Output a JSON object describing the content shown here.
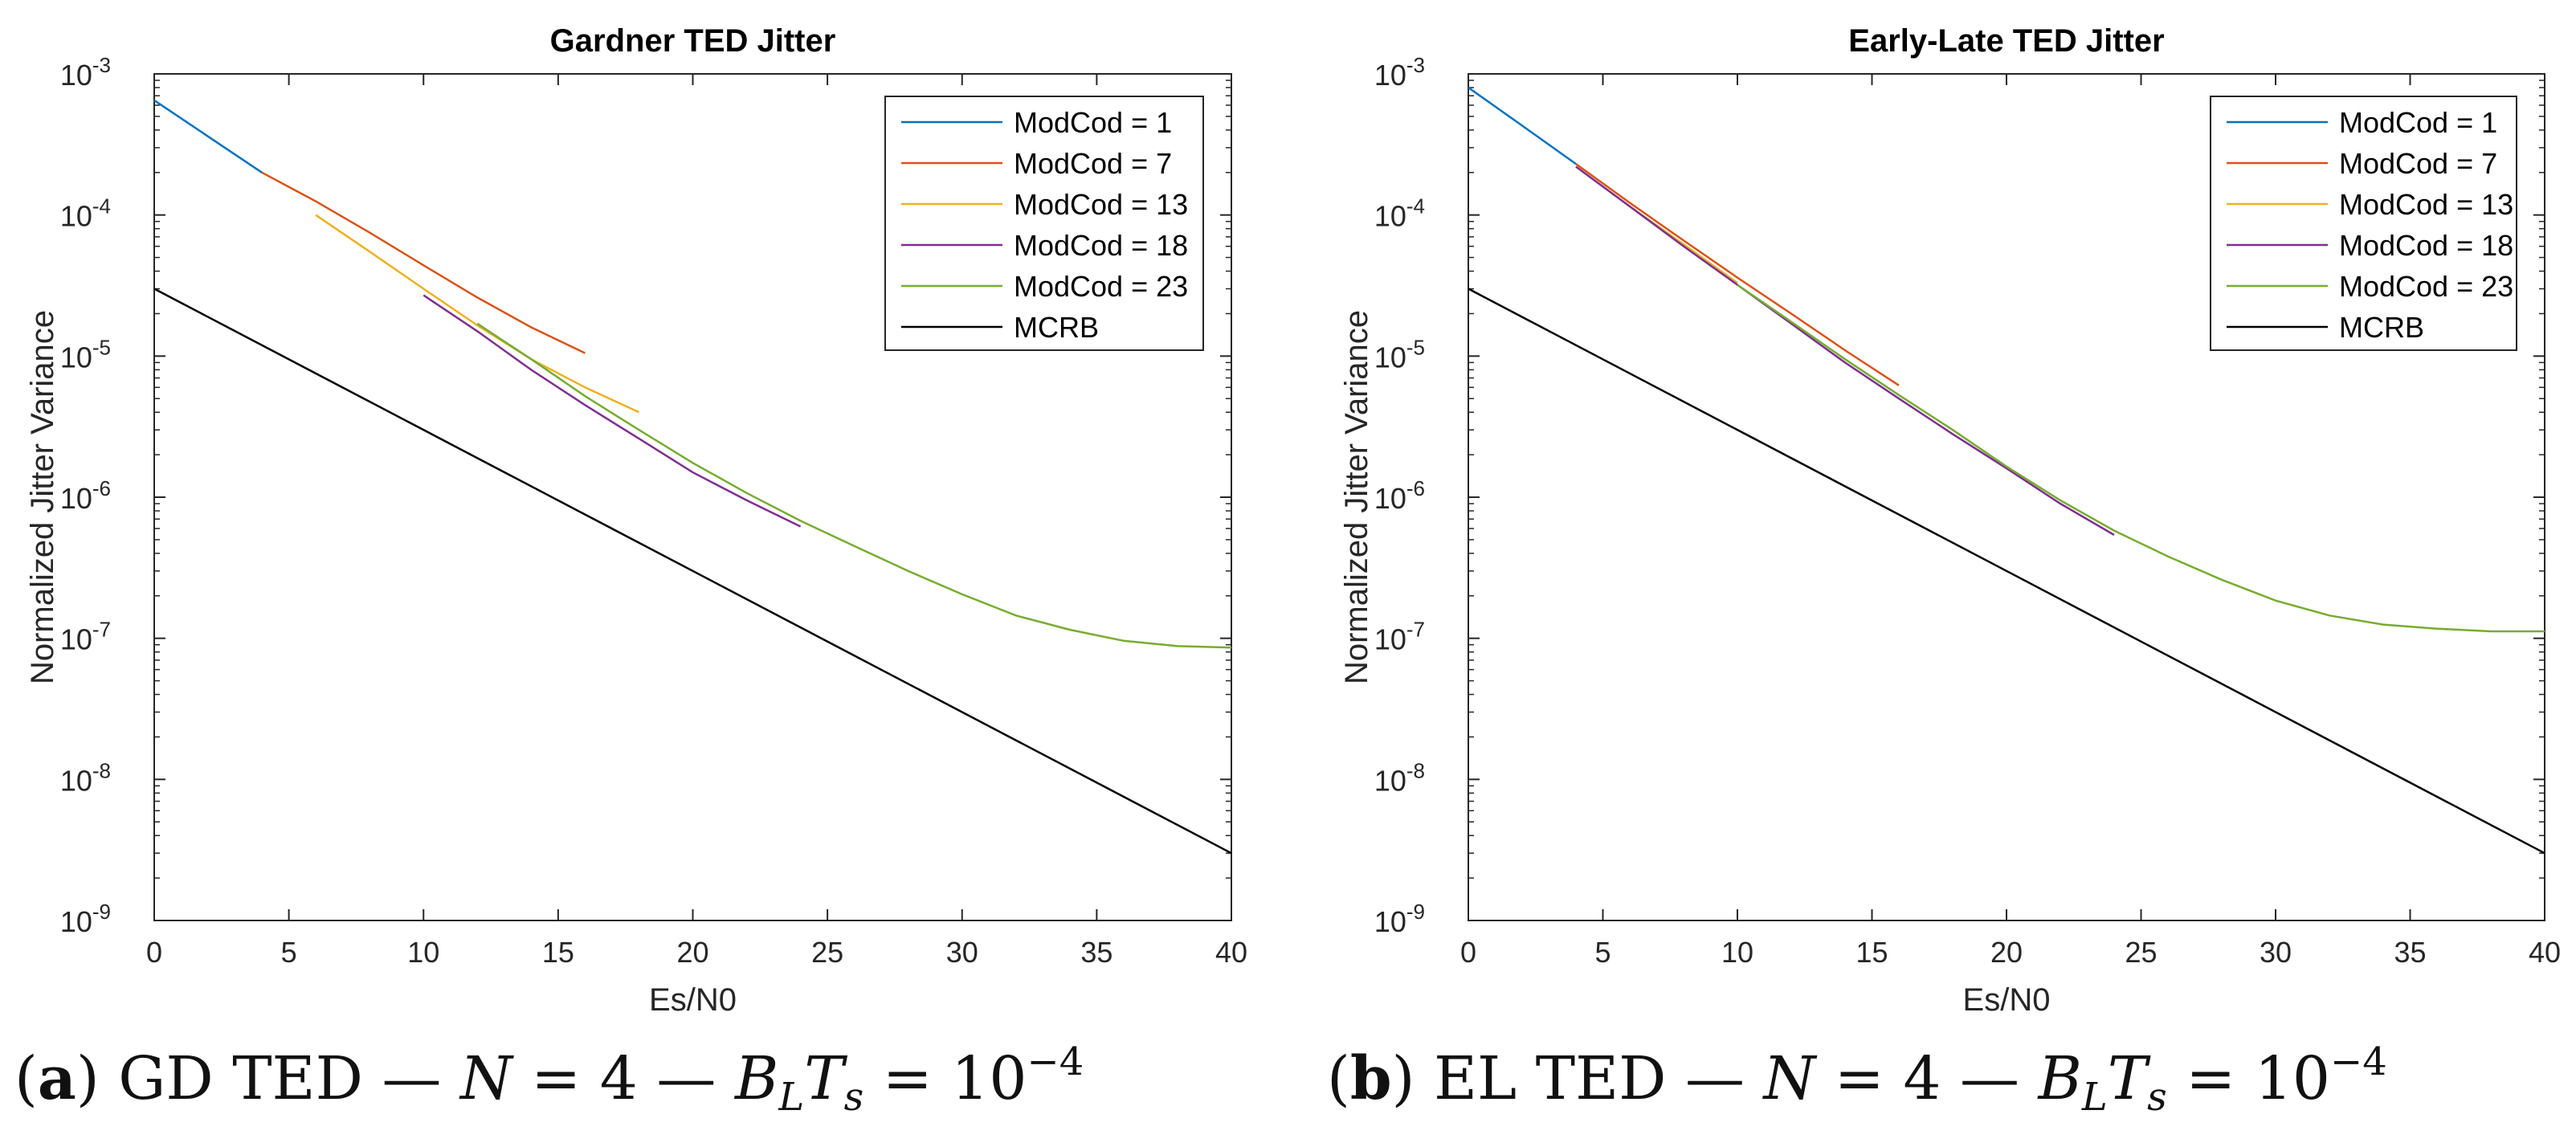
{
  "chart_data": [
    {
      "type": "line",
      "title": "Gardner TED Jitter",
      "xlabel": "Es/N0",
      "ylabel": "Normalized Jitter Variance",
      "xlim": [
        0,
        40
      ],
      "ylim": [
        1e-09,
        0.001
      ],
      "yscale": "log",
      "xticks": [
        0,
        5,
        10,
        15,
        20,
        25,
        30,
        35,
        40
      ],
      "yticks": [
        {
          "base": "10",
          "exp": "-9"
        },
        {
          "base": "10",
          "exp": "-8"
        },
        {
          "base": "10",
          "exp": "-7"
        },
        {
          "base": "10",
          "exp": "-6"
        },
        {
          "base": "10",
          "exp": "-5"
        },
        {
          "base": "10",
          "exp": "-4"
        },
        {
          "base": "10",
          "exp": "-3"
        }
      ],
      "legend_position": "top-right",
      "series": [
        {
          "name": "ModCod = 1",
          "color": "#0072BD",
          "x": [
            0,
            2,
            4
          ],
          "y": [
            0.00065,
            0.00036,
            0.0002
          ]
        },
        {
          "name": "ModCod = 7",
          "color": "#D95319",
          "x": [
            4,
            6,
            8,
            10,
            12,
            14,
            16
          ],
          "y": [
            0.0002,
            0.000125,
            7.5e-05,
            4.4e-05,
            2.6e-05,
            1.6e-05,
            1.05e-05
          ]
        },
        {
          "name": "ModCod = 13",
          "color": "#EDB120",
          "x": [
            6,
            8,
            10,
            12,
            14,
            16,
            18
          ],
          "y": [
            0.0001,
            5.5e-05,
            3e-05,
            1.65e-05,
            9.5e-06,
            6e-06,
            4e-06
          ]
        },
        {
          "name": "ModCod = 18",
          "color": "#7E2F8E",
          "x": [
            10,
            12,
            14,
            16,
            18,
            20,
            22,
            24
          ],
          "y": [
            2.7e-05,
            1.5e-05,
            8e-06,
            4.5e-06,
            2.6e-06,
            1.5e-06,
            9.5e-07,
            6.2e-07
          ]
        },
        {
          "name": "ModCod = 23",
          "color": "#77AC30",
          "x": [
            12,
            14,
            16,
            18,
            20,
            22,
            24,
            26,
            28,
            30,
            32,
            34,
            36,
            38,
            40
          ],
          "y": [
            1.7e-05,
            9.5e-06,
            5.2e-06,
            3e-06,
            1.75e-06,
            1.07e-06,
            6.8e-07,
            4.5e-07,
            3e-07,
            2.05e-07,
            1.45e-07,
            1.15e-07,
            9.6e-08,
            8.8e-08,
            8.6e-08
          ]
        },
        {
          "name": "MCRB",
          "color": "#000000",
          "x": [
            0,
            40
          ],
          "y": [
            3e-05,
            3e-09
          ]
        }
      ]
    },
    {
      "type": "line",
      "title": "Early-Late TED Jitter",
      "xlabel": "Es/N0",
      "ylabel": "Normalized Jitter Variance",
      "xlim": [
        0,
        40
      ],
      "ylim": [
        1e-09,
        0.001
      ],
      "yscale": "log",
      "xticks": [
        0,
        5,
        10,
        15,
        20,
        25,
        30,
        35,
        40
      ],
      "yticks": [
        {
          "base": "10",
          "exp": "-9"
        },
        {
          "base": "10",
          "exp": "-8"
        },
        {
          "base": "10",
          "exp": "-7"
        },
        {
          "base": "10",
          "exp": "-6"
        },
        {
          "base": "10",
          "exp": "-5"
        },
        {
          "base": "10",
          "exp": "-4"
        },
        {
          "base": "10",
          "exp": "-3"
        }
      ],
      "legend_position": "top-right",
      "series": [
        {
          "name": "ModCod = 1",
          "color": "#0072BD",
          "x": [
            0,
            2,
            4
          ],
          "y": [
            0.0008,
            0.00043,
            0.00023
          ]
        },
        {
          "name": "ModCod = 7",
          "color": "#D95319",
          "x": [
            4,
            6,
            8,
            10,
            12,
            14,
            16
          ],
          "y": [
            0.00023,
            0.000122,
            6.6e-05,
            3.6e-05,
            2e-05,
            1.1e-05,
            6.2e-06
          ]
        },
        {
          "name": "ModCod = 13",
          "color": "#EDB120",
          "x": [
            4,
            6,
            8,
            10
          ],
          "y": [
            0.00022,
            0.000115,
            6.2e-05,
            3.3e-05
          ]
        },
        {
          "name": "ModCod = 18",
          "color": "#7E2F8E",
          "x": [
            4,
            6,
            8,
            10,
            12,
            14,
            16,
            18,
            20,
            22,
            24
          ],
          "y": [
            0.00022,
            0.000115,
            6e-05,
            3.2e-05,
            1.7e-05,
            9e-06,
            5e-06,
            2.8e-06,
            1.6e-06,
            9e-07,
            5.4e-07
          ]
        },
        {
          "name": "ModCod = 23",
          "color": "#77AC30",
          "x": [
            10,
            12,
            14,
            16,
            18,
            20,
            22,
            24,
            26,
            28,
            30,
            32,
            34,
            36,
            38,
            40
          ],
          "y": [
            3.2e-05,
            1.75e-05,
            9.5e-06,
            5.3e-06,
            3e-06,
            1.65e-06,
            9.5e-07,
            5.8e-07,
            3.8e-07,
            2.6e-07,
            1.85e-07,
            1.45e-07,
            1.25e-07,
            1.17e-07,
            1.12e-07,
            1.12e-07
          ]
        },
        {
          "name": "MCRB",
          "color": "#000000",
          "x": [
            0,
            40
          ],
          "y": [
            3e-05,
            3e-09
          ]
        }
      ]
    }
  ],
  "captions": [
    {
      "label": "(a)",
      "label_letter": "a",
      "ted": "GD TED",
      "dash": "—",
      "n_var": "N",
      "eq": "=",
      "n_val": "4",
      "bl": "B",
      "bl_sub": "L",
      "ts": "T",
      "ts_sub": "s",
      "ten": "10",
      "exp": "−4"
    },
    {
      "label": "(b)",
      "label_letter": "b",
      "ted": "EL TED",
      "dash": "—",
      "n_var": "N",
      "eq": "=",
      "n_val": "4",
      "bl": "B",
      "bl_sub": "L",
      "ts": "T",
      "ts_sub": "s",
      "ten": "10",
      "exp": "−4"
    }
  ]
}
